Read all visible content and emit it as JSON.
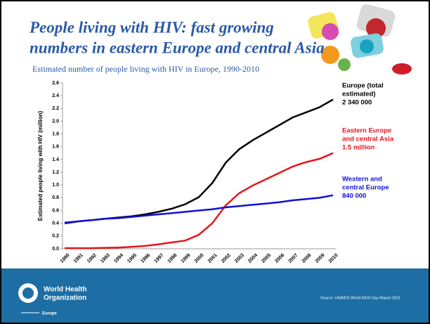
{
  "chart_data": {
    "type": "line",
    "title_lines": [
      "People living with HIV: fast growing",
      "numbers in eastern Europe and central Asia"
    ],
    "subtitle": "Estimated number of people living with HIV in Europe, 1990-2010",
    "y_label": "Estimated people living with HIV (million)",
    "categories": [
      "1990",
      "1991",
      "1992",
      "1993",
      "1994",
      "1995",
      "1996",
      "1997",
      "1998",
      "1999",
      "2000",
      "2001",
      "2002",
      "2003",
      "2004",
      "2005",
      "2006",
      "2007",
      "2008",
      "2009",
      "2010"
    ],
    "ylim": [
      0,
      2.6
    ],
    "yticks": [
      {
        "value": 0,
        "label": "0.0"
      },
      0.2,
      0.4,
      0.6,
      0.8,
      {
        "value": 1,
        "label": "1.0"
      },
      1.2,
      1.4,
      1.6,
      1.8,
      {
        "value": 2,
        "label": "2.0"
      },
      2.2,
      2.4,
      2.6
    ],
    "series": [
      {
        "name_lines": [
          "Europe (total",
          "estimated)",
          "2 340 000"
        ],
        "color": "#000000",
        "values": [
          0.4,
          0.43,
          0.45,
          0.47,
          0.49,
          0.51,
          0.54,
          0.58,
          0.63,
          0.7,
          0.81,
          1.03,
          1.35,
          1.56,
          1.7,
          1.82,
          1.94,
          2.06,
          2.14,
          2.22,
          2.34
        ]
      },
      {
        "name_lines": [
          "Eastern Europe",
          "and central Asia",
          "1.5 million"
        ],
        "color": "#e8141b",
        "values": [
          0.01,
          0.01,
          0.01,
          0.015,
          0.02,
          0.03,
          0.045,
          0.07,
          0.1,
          0.13,
          0.22,
          0.4,
          0.68,
          0.87,
          0.99,
          1.09,
          1.19,
          1.29,
          1.36,
          1.41,
          1.5
        ]
      },
      {
        "name_lines": [
          "Western and",
          "central Europe",
          "840 000"
        ],
        "color": "#1010d8",
        "values": [
          0.41,
          0.43,
          0.45,
          0.47,
          0.48,
          0.5,
          0.52,
          0.54,
          0.56,
          0.58,
          0.6,
          0.62,
          0.65,
          0.67,
          0.69,
          0.71,
          0.73,
          0.76,
          0.78,
          0.8,
          0.84
        ]
      }
    ]
  },
  "footer": {
    "logo_lines": [
      "World Health",
      "Organization",
      "Europe"
    ],
    "source": "Source: UNAIDS World AIDS Day Report 2011"
  }
}
